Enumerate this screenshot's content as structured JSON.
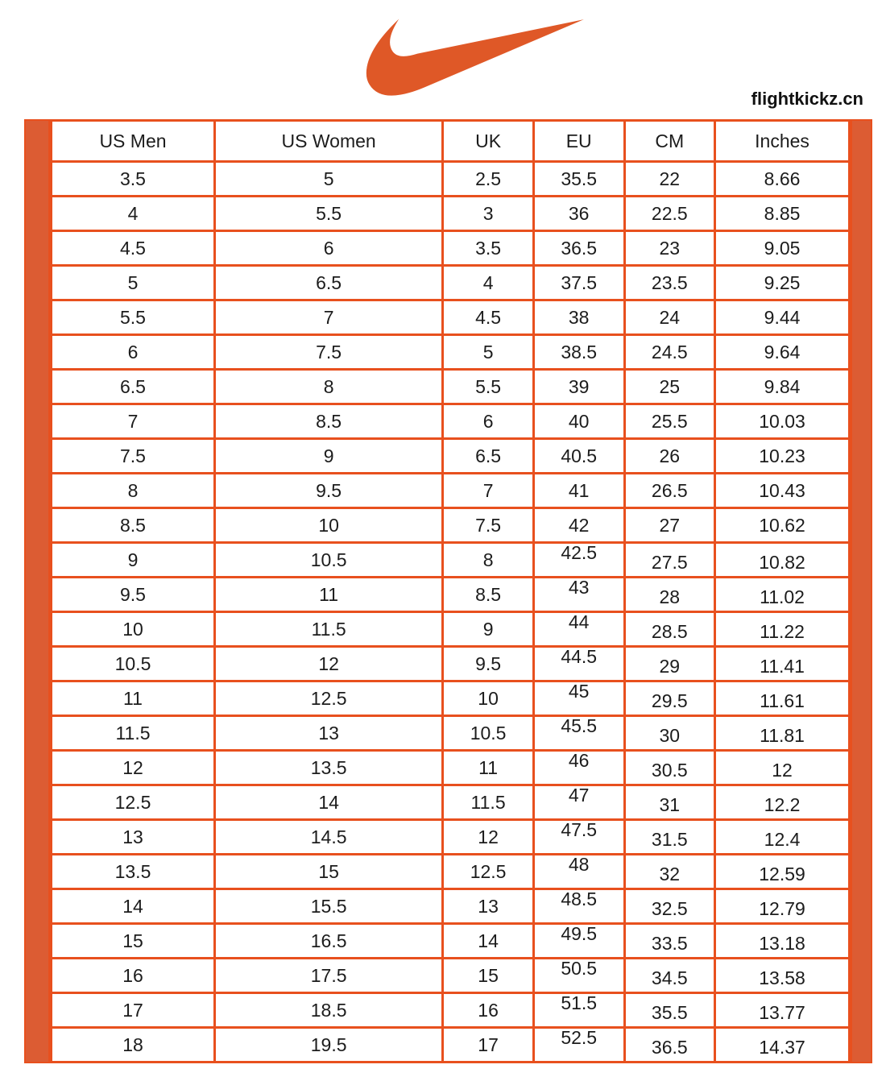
{
  "brand": {
    "logo_icon": "nike-swoosh-icon",
    "logo_color": "#DF5827",
    "watermark": "flightkickz.cn"
  },
  "colors": {
    "accent_bar": "#DC5C33",
    "table_border": "#E8501E",
    "cell_text": "#1C1C1C",
    "watermark_text": "#111111",
    "background": "#FFFFFF"
  },
  "chart_data": {
    "type": "table",
    "columns": [
      "US Men",
      "US Women",
      "UK",
      "EU",
      "CM",
      "Inches"
    ],
    "rows": [
      [
        "3.5",
        "5",
        "2.5",
        "35.5",
        "22",
        "8.66"
      ],
      [
        "4",
        "5.5",
        "3",
        "36",
        "22.5",
        "8.85"
      ],
      [
        "4.5",
        "6",
        "3.5",
        "36.5",
        "23",
        "9.05"
      ],
      [
        "5",
        "6.5",
        "4",
        "37.5",
        "23.5",
        "9.25"
      ],
      [
        "5.5",
        "7",
        "4.5",
        "38",
        "24",
        "9.44"
      ],
      [
        "6",
        "7.5",
        "5",
        "38.5",
        "24.5",
        "9.64"
      ],
      [
        "6.5",
        "8",
        "5.5",
        "39",
        "25",
        "9.84"
      ],
      [
        "7",
        "8.5",
        "6",
        "40",
        "25.5",
        "10.03"
      ],
      [
        "7.5",
        "9",
        "6.5",
        "40.5",
        "26",
        "10.23"
      ],
      [
        "8",
        "9.5",
        "7",
        "41",
        "26.5",
        "10.43"
      ],
      [
        "8.5",
        "10",
        "7.5",
        "42",
        "27",
        "10.62"
      ],
      [
        "9",
        "10.5",
        "8",
        "42.5",
        "27.5",
        "10.82"
      ],
      [
        "9.5",
        "11",
        "8.5",
        "43",
        "28",
        "11.02"
      ],
      [
        "10",
        "11.5",
        "9",
        "44",
        "28.5",
        "11.22"
      ],
      [
        "10.5",
        "12",
        "9.5",
        "44.5",
        "29",
        "11.41"
      ],
      [
        "11",
        "12.5",
        "10",
        "45",
        "29.5",
        "11.61"
      ],
      [
        "11.5",
        "13",
        "10.5",
        "45.5",
        "30",
        "11.81"
      ],
      [
        "12",
        "13.5",
        "11",
        "46",
        "30.5",
        "12"
      ],
      [
        "12.5",
        "14",
        "11.5",
        "47",
        "31",
        "12.2"
      ],
      [
        "13",
        "14.5",
        "12",
        "47.5",
        "31.5",
        "12.4"
      ],
      [
        "13.5",
        "15",
        "12.5",
        "48",
        "32",
        "12.59"
      ],
      [
        "14",
        "15.5",
        "13",
        "48.5",
        "32.5",
        "12.79"
      ],
      [
        "15",
        "16.5",
        "14",
        "49.5",
        "33.5",
        "13.18"
      ],
      [
        "16",
        "17.5",
        "15",
        "50.5",
        "34.5",
        "13.58"
      ],
      [
        "17",
        "18.5",
        "16",
        "51.5",
        "35.5",
        "13.77"
      ],
      [
        "18",
        "19.5",
        "17",
        "52.5",
        "36.5",
        "14.37"
      ]
    ]
  }
}
